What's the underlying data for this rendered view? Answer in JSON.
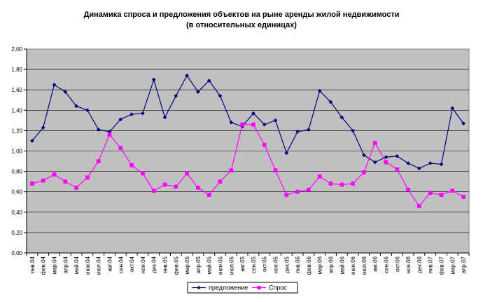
{
  "chart_data": {
    "type": "line",
    "title": "Динамика спроса и предложения объектов на рыне аренды жилой недвижимости",
    "subtitle": "(в относительных единицах)",
    "categories": [
      "янв.04",
      "фев.04",
      "мар.04",
      "апр.04",
      "май.04",
      "июн.04",
      "июл.04",
      "авг.04",
      "сен.04",
      "окт.04",
      "ноя.04",
      "дек.04",
      "янв.05",
      "фев.05",
      "мар.05",
      "апр.05",
      "май.05",
      "июн.05",
      "июл.05",
      "авг.05",
      "сен.05",
      "окт.05",
      "ноя.05",
      "дек.05",
      "янв.06",
      "фев.06",
      "мар.06",
      "апр.06",
      "май.06",
      "июн.06",
      "июл.06",
      "авг.06",
      "сен.06",
      "окт.06",
      "ноя.06",
      "дек.06",
      "янв.07",
      "фев.07",
      "мар.07",
      "апр.07"
    ],
    "y_ticks": [
      "0,00",
      "0,20",
      "0,40",
      "0,60",
      "0,80",
      "1,00",
      "1,20",
      "1,40",
      "1,60",
      "1,80",
      "2,00"
    ],
    "ylim": [
      0,
      2
    ],
    "grid": true,
    "legend_position": "bottom",
    "series": [
      {
        "name": "предложение",
        "color": "#000080",
        "marker": "diamond",
        "values": [
          1.1,
          1.23,
          1.65,
          1.58,
          1.44,
          1.4,
          1.21,
          1.19,
          1.31,
          1.36,
          1.37,
          1.7,
          1.33,
          1.54,
          1.74,
          1.58,
          1.69,
          1.54,
          1.28,
          1.24,
          1.37,
          1.26,
          1.3,
          0.98,
          1.19,
          1.21,
          1.59,
          1.48,
          1.33,
          1.2,
          0.96,
          0.89,
          0.94,
          0.95,
          0.88,
          0.83,
          0.88,
          0.87,
          1.42,
          1.27
        ]
      },
      {
        "name": "Спрос",
        "color": "#ff00ff",
        "marker": "square",
        "values": [
          0.68,
          0.71,
          0.77,
          0.7,
          0.64,
          0.74,
          0.9,
          1.16,
          1.03,
          0.86,
          0.78,
          0.61,
          0.67,
          0.65,
          0.78,
          0.64,
          0.57,
          0.7,
          0.81,
          1.26,
          1.26,
          1.06,
          0.81,
          0.57,
          0.6,
          0.62,
          0.75,
          0.68,
          0.67,
          0.68,
          0.79,
          1.08,
          0.89,
          0.82,
          0.62,
          0.46,
          0.59,
          0.57,
          0.61,
          0.55
        ]
      }
    ]
  },
  "style": {
    "plot_background": "#c0c0c0",
    "gridline_color": "#000000"
  }
}
